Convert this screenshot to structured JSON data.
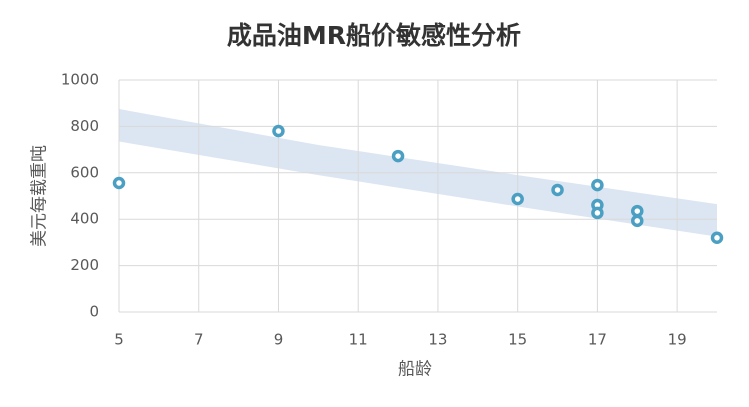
{
  "chart_data": {
    "type": "scatter",
    "title": "成品油MR船价敏感性分析",
    "x_label": "船龄",
    "y_label": "美元每载重吨",
    "xlim": [
      5,
      20
    ],
    "xticks": [
      5,
      7,
      9,
      11,
      13,
      15,
      17,
      19
    ],
    "ylim": [
      0,
      1000
    ],
    "yticks": [
      0,
      200,
      400,
      600,
      800,
      1000
    ],
    "grid": true,
    "band": {
      "color": "#dce5f2",
      "x": [
        5,
        10,
        15,
        20
      ],
      "upper": [
        875,
        720,
        590,
        465
      ],
      "lower": [
        735,
        590,
        455,
        325
      ]
    },
    "series": [
      {
        "color": "#4a9fc2",
        "x": [
          5,
          9,
          12,
          15,
          16,
          17,
          17,
          17,
          18,
          18,
          20
        ],
        "values": [
          556,
          780,
          672,
          487,
          526,
          547,
          461,
          427,
          435,
          393,
          320
        ]
      }
    ]
  }
}
